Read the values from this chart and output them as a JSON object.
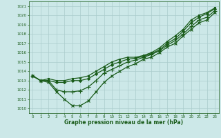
{
  "bg_color": "#cce8e8",
  "grid_color": "#aacccc",
  "line_color": "#1a5c1a",
  "title": "Graphe pression niveau de la mer (hPa)",
  "xlim": [
    -0.5,
    23.5
  ],
  "ylim": [
    1009.5,
    1021.5
  ],
  "yticks": [
    1010,
    1011,
    1012,
    1013,
    1014,
    1015,
    1016,
    1017,
    1018,
    1019,
    1020,
    1021
  ],
  "xticks": [
    0,
    1,
    2,
    3,
    4,
    5,
    6,
    7,
    8,
    9,
    10,
    11,
    12,
    13,
    14,
    15,
    16,
    17,
    18,
    19,
    20,
    21,
    22,
    23
  ],
  "series": [
    {
      "x": [
        0,
        1,
        2,
        3,
        4,
        5,
        6,
        7,
        8,
        9,
        10,
        11,
        12,
        13,
        14,
        15,
        16,
        17,
        18,
        19,
        20,
        21,
        22,
        23
      ],
      "y": [
        1013.5,
        1013.0,
        1013.2,
        1013.0,
        1013.0,
        1013.2,
        1013.3,
        1013.5,
        1014.0,
        1014.5,
        1015.0,
        1015.3,
        1015.5,
        1015.5,
        1015.7,
        1016.0,
        1016.5,
        1017.2,
        1017.8,
        1018.5,
        1019.5,
        1020.0,
        1020.3,
        1020.8
      ],
      "marker": "s",
      "markersize": 2.0,
      "lw": 0.9
    },
    {
      "x": [
        0,
        1,
        2,
        3,
        4,
        5,
        6,
        7,
        8,
        9,
        10,
        11,
        12,
        13,
        14,
        15,
        16,
        17,
        18,
        19,
        20,
        21,
        22,
        23
      ],
      "y": [
        1013.5,
        1013.0,
        1013.0,
        1012.8,
        1012.8,
        1013.0,
        1013.0,
        1013.2,
        1013.7,
        1014.2,
        1014.7,
        1015.0,
        1015.3,
        1015.4,
        1015.6,
        1015.9,
        1016.3,
        1017.0,
        1017.5,
        1018.3,
        1019.2,
        1019.8,
        1020.2,
        1020.7
      ],
      "marker": "D",
      "markersize": 2.0,
      "lw": 0.9
    },
    {
      "x": [
        0,
        1,
        2,
        3,
        4,
        5,
        6,
        7,
        8,
        9,
        10,
        11,
        12,
        13,
        14,
        15,
        16,
        17,
        18,
        19,
        20,
        21,
        22,
        23
      ],
      "y": [
        1013.5,
        1013.0,
        1013.0,
        1012.0,
        1011.8,
        1011.8,
        1011.9,
        1012.3,
        1013.0,
        1013.8,
        1014.2,
        1014.6,
        1015.0,
        1015.2,
        1015.5,
        1015.8,
        1016.2,
        1016.8,
        1017.3,
        1018.0,
        1018.8,
        1019.5,
        1019.8,
        1020.5
      ],
      "marker": "+",
      "markersize": 4.0,
      "lw": 0.9
    },
    {
      "x": [
        0,
        1,
        2,
        3,
        4,
        5,
        6,
        7,
        8,
        9,
        10,
        11,
        12,
        13,
        14,
        15,
        16,
        17,
        18,
        19,
        20,
        21,
        22,
        23
      ],
      "y": [
        1013.5,
        1013.0,
        1012.8,
        1011.8,
        1011.0,
        1010.3,
        1010.3,
        1010.8,
        1011.8,
        1012.8,
        1013.5,
        1014.0,
        1014.5,
        1014.8,
        1015.3,
        1015.5,
        1016.0,
        1016.6,
        1017.0,
        1017.8,
        1018.5,
        1019.2,
        1019.5,
        1020.3
      ],
      "marker": "x",
      "markersize": 3.5,
      "lw": 0.9
    }
  ]
}
